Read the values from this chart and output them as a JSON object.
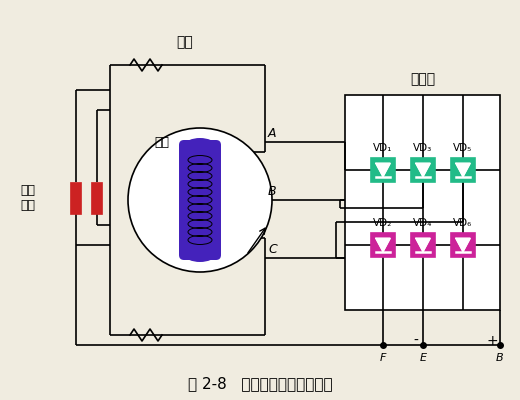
{
  "title": "图 2-8   交流发电机工作原理图",
  "bg_color": "#f0ece0",
  "line_color": "#000000",
  "rotor_color": "#4422bb",
  "brush_color": "#cc2222",
  "diode_top_color": "#22bb88",
  "diode_bot_color": "#cc2299",
  "label_dingzi": "定子",
  "label_zhuanzi": "转子",
  "label_huanjuan": "滑环\n电刷",
  "label_zhengliuqi": "整流器",
  "label_A": "A",
  "label_B_mid": "B",
  "label_C": "C",
  "label_F": "F",
  "label_E": "E",
  "label_B_out": "B",
  "vd_top": [
    "VD₁",
    "VD₃",
    "VD₅"
  ],
  "vd_bot": [
    "VD₂",
    "VD₄",
    "VD₆"
  ]
}
